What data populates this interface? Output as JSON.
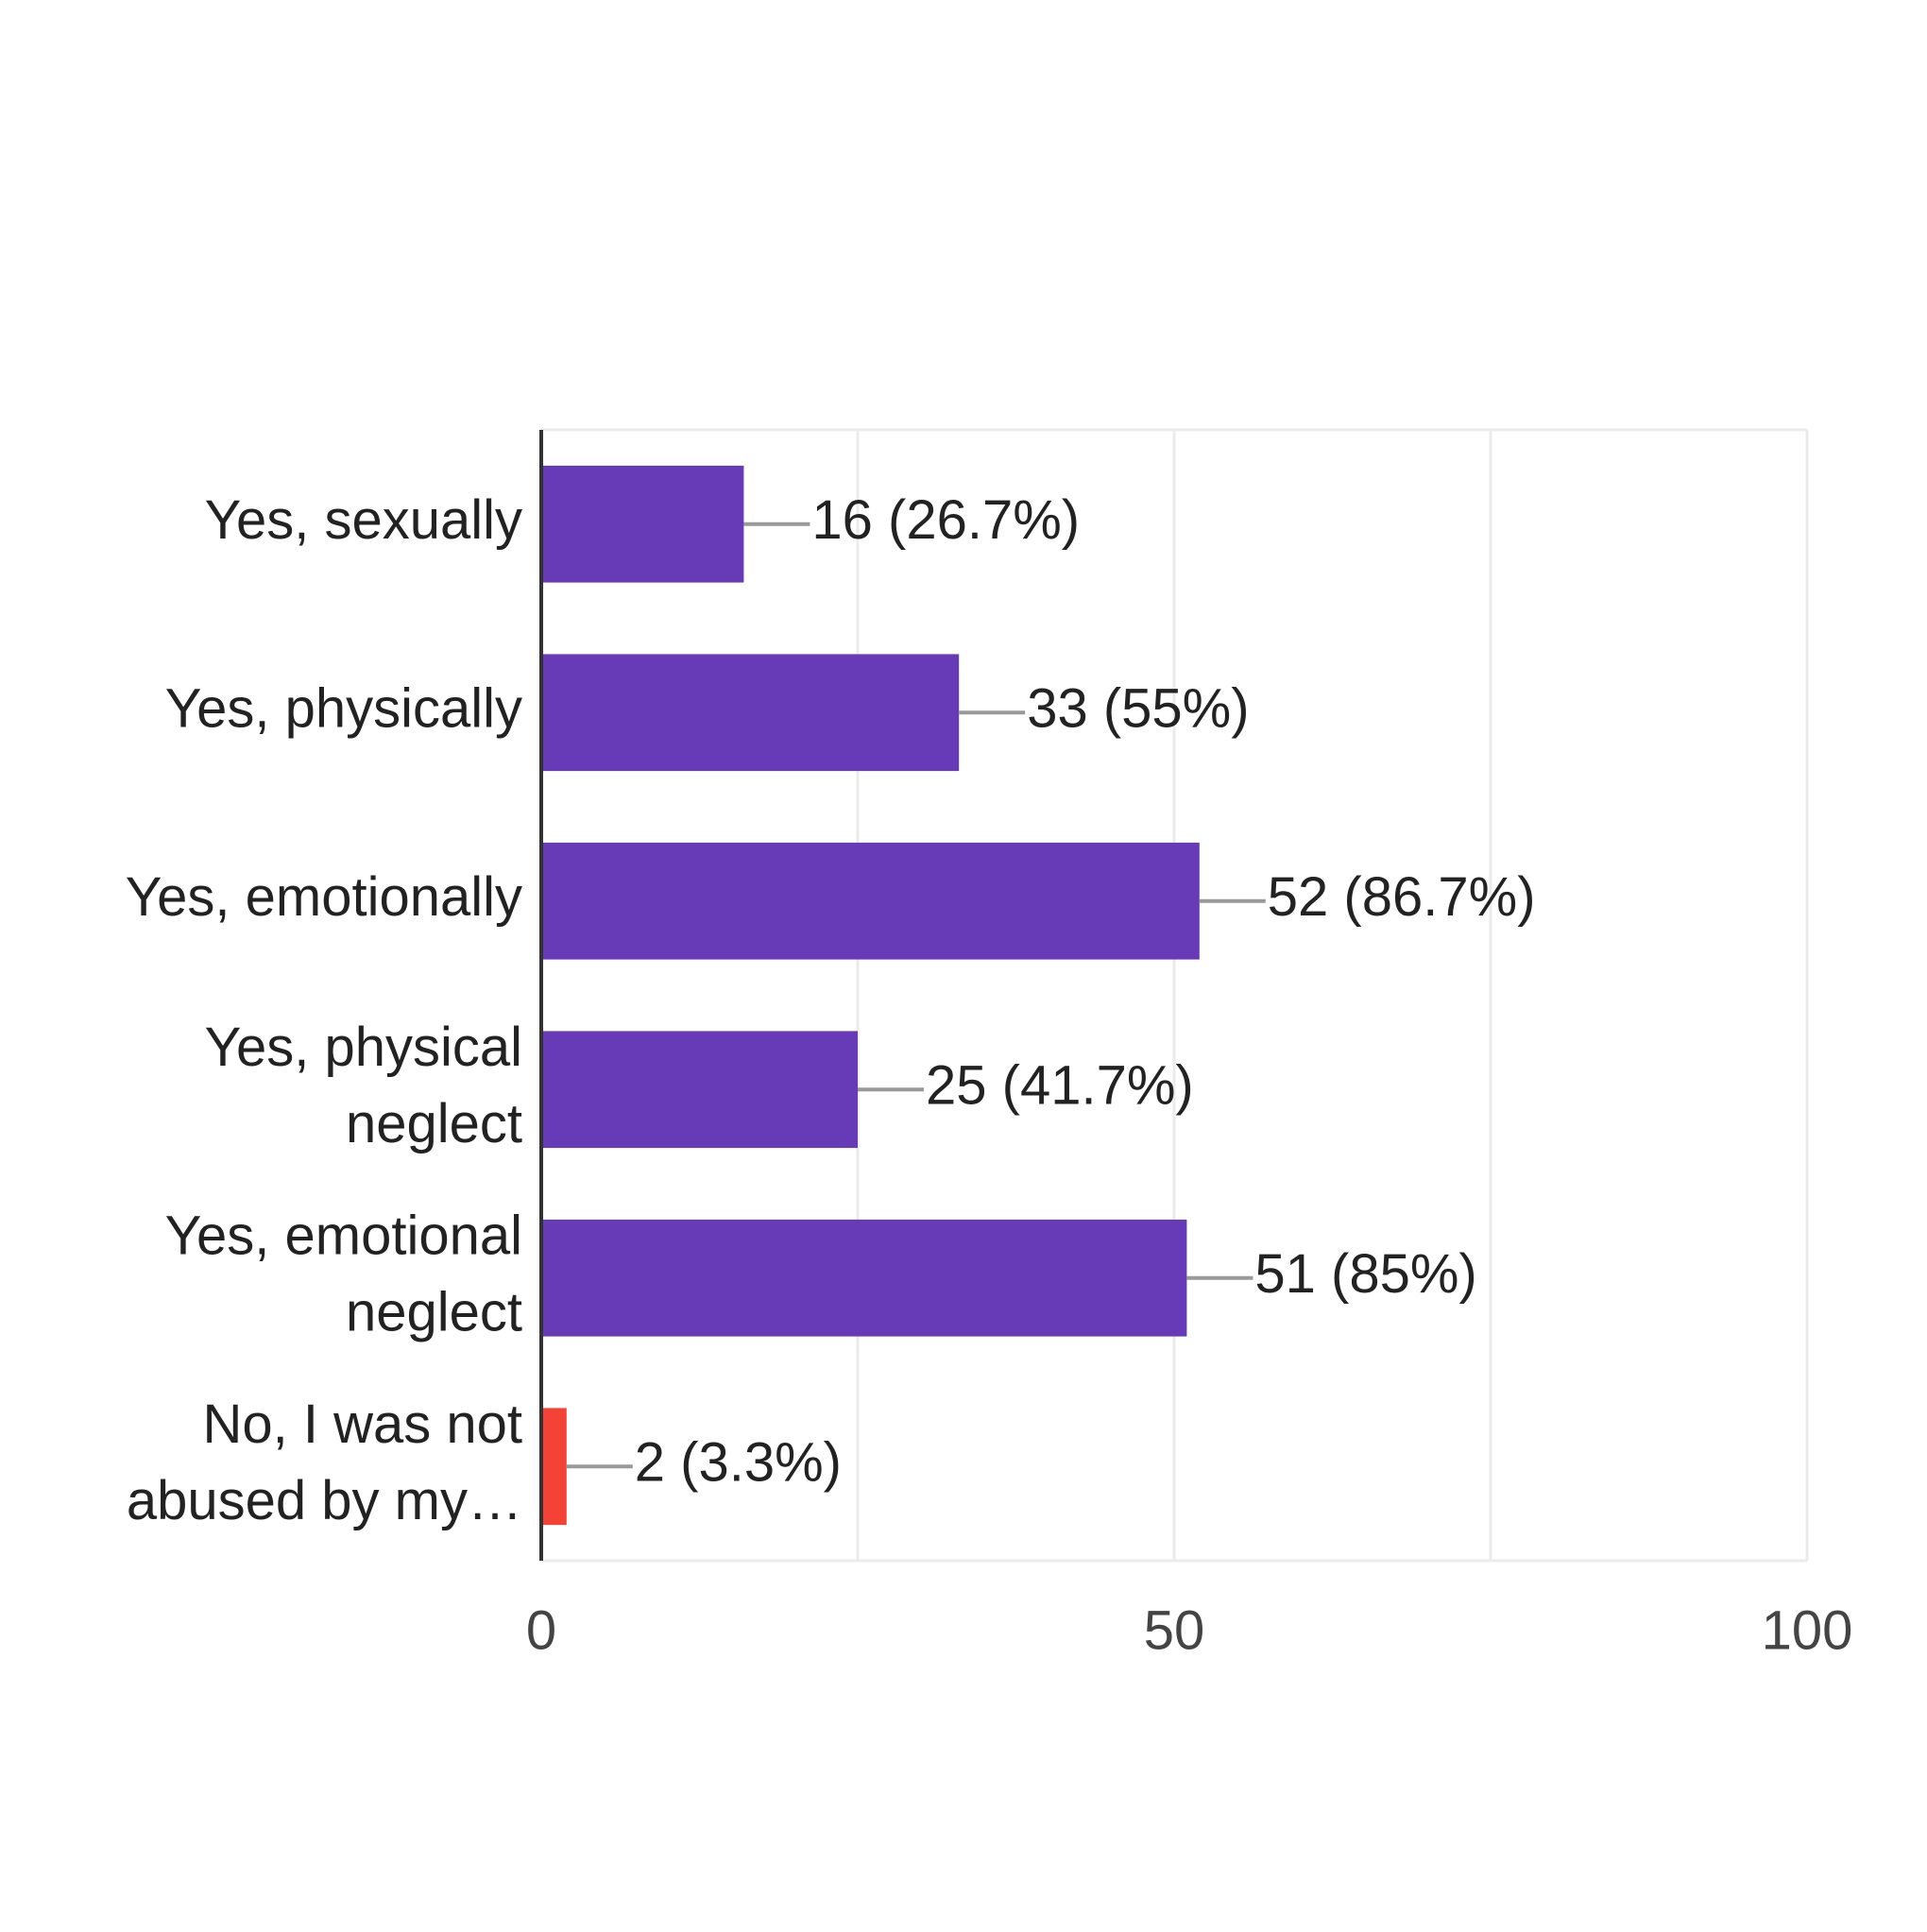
{
  "chart_data": {
    "type": "bar",
    "orientation": "horizontal",
    "categories": [
      "Yes, sexually",
      "Yes, physically",
      "Yes, emotionally",
      "Yes, physical neglect",
      "Yes, emotional neglect",
      "No, I was not abused by my…"
    ],
    "values": [
      16,
      33,
      52,
      25,
      51,
      2
    ],
    "value_labels": [
      "16 (26.7%)",
      "33 (55%)",
      "52 (86.7%)",
      "25 (41.7%)",
      "51 (85%)",
      "2 (3.3%)"
    ],
    "colors": [
      "#673ab7",
      "#673ab7",
      "#673ab7",
      "#673ab7",
      "#673ab7",
      "#f44336"
    ],
    "xlim": [
      0,
      100
    ],
    "xticks": [
      0,
      50,
      100
    ],
    "minor_gridlines": [
      25,
      75
    ],
    "grid": true
  }
}
